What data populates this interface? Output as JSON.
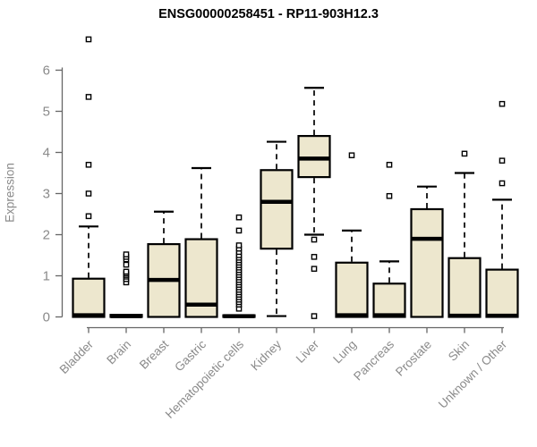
{
  "page": {
    "background": "#ffffff"
  },
  "chart_data": {
    "type": "boxplot",
    "title": "ENSG00000258451 - RP11-903H12.3",
    "ylabel": "Expression",
    "xlabel": "",
    "ylim": [
      0,
      6
    ],
    "yticks": [
      0,
      1,
      2,
      3,
      4,
      5,
      6
    ],
    "grid": false,
    "legend": "none",
    "categories": [
      "Bladder",
      "Brain",
      "Breast",
      "Gastric",
      "Hematopoietic cells",
      "Kidney",
      "Liver",
      "Lung",
      "Pancreas",
      "Prostate",
      "Skin",
      "Unknown / Other"
    ],
    "series": [
      {
        "category": "Bladder",
        "q1": 0,
        "median": 0.04,
        "q3": 0.93,
        "whisker_low": 0,
        "whisker_high": 2.2,
        "outliers": [
          2.45,
          3.0,
          3.7,
          5.35,
          6.75
        ]
      },
      {
        "category": "Brain",
        "q1": 0,
        "median": 0.02,
        "q3": 0.05,
        "whisker_low": 0,
        "whisker_high": 0.05,
        "outliers": [
          0.84,
          0.92,
          0.98,
          1.02,
          1.06,
          1.1,
          1.27,
          1.4,
          1.46,
          1.52
        ]
      },
      {
        "category": "Breast",
        "q1": 0,
        "median": 0.9,
        "q3": 1.77,
        "whisker_low": 0,
        "whisker_high": 2.56,
        "outliers": []
      },
      {
        "category": "Gastric",
        "q1": 0,
        "median": 0.3,
        "q3": 1.89,
        "whisker_low": 0,
        "whisker_high": 3.62,
        "outliers": []
      },
      {
        "category": "Hematopoietic cells",
        "q1": 0,
        "median": 0.02,
        "q3": 0.04,
        "whisker_low": 0,
        "whisker_high": 0.04,
        "outliers": [
          0.2,
          0.3,
          0.36,
          0.42,
          0.48,
          0.54,
          0.6,
          0.66,
          0.72,
          0.78,
          0.84,
          0.9,
          0.96,
          1.02,
          1.08,
          1.14,
          1.2,
          1.26,
          1.32,
          1.38,
          1.44,
          1.5,
          1.58,
          1.66,
          1.74,
          2.1,
          2.42
        ]
      },
      {
        "category": "Kidney",
        "q1": 1.66,
        "median": 2.8,
        "q3": 3.57,
        "whisker_low": 0.02,
        "whisker_high": 4.26,
        "outliers": []
      },
      {
        "category": "Liver",
        "q1": 3.4,
        "median": 3.85,
        "q3": 4.4,
        "whisker_low": 2.0,
        "whisker_high": 5.57,
        "outliers": [
          1.88,
          1.46,
          1.17,
          0.02
        ]
      },
      {
        "category": "Lung",
        "q1": 0,
        "median": 0.04,
        "q3": 1.32,
        "whisker_low": 0,
        "whisker_high": 2.1,
        "outliers": [
          3.93
        ]
      },
      {
        "category": "Pancreas",
        "q1": 0,
        "median": 0.04,
        "q3": 0.81,
        "whisker_low": 0,
        "whisker_high": 1.35,
        "outliers": [
          2.94,
          3.7
        ]
      },
      {
        "category": "Prostate",
        "q1": 0,
        "median": 1.9,
        "q3": 2.62,
        "whisker_low": 0,
        "whisker_high": 3.17,
        "outliers": []
      },
      {
        "category": "Skin",
        "q1": 0,
        "median": 0.03,
        "q3": 1.43,
        "whisker_low": 0,
        "whisker_high": 3.5,
        "outliers": [
          3.97
        ]
      },
      {
        "category": "Unknown / Other",
        "q1": 0,
        "median": 0.03,
        "q3": 1.15,
        "whisker_low": 0,
        "whisker_high": 2.85,
        "outliers": [
          3.25,
          3.8,
          5.18
        ]
      }
    ],
    "style": {
      "box_fill": "#EDE7CE",
      "box_border": "#000000",
      "median_color": "#000000",
      "whisker_color": "#000000",
      "outlier_fill": "#ffffff",
      "axis_color": "#666666",
      "tick_label_color": "#8a8a8a",
      "title_color": "#000000",
      "background": "#ffffff"
    }
  }
}
